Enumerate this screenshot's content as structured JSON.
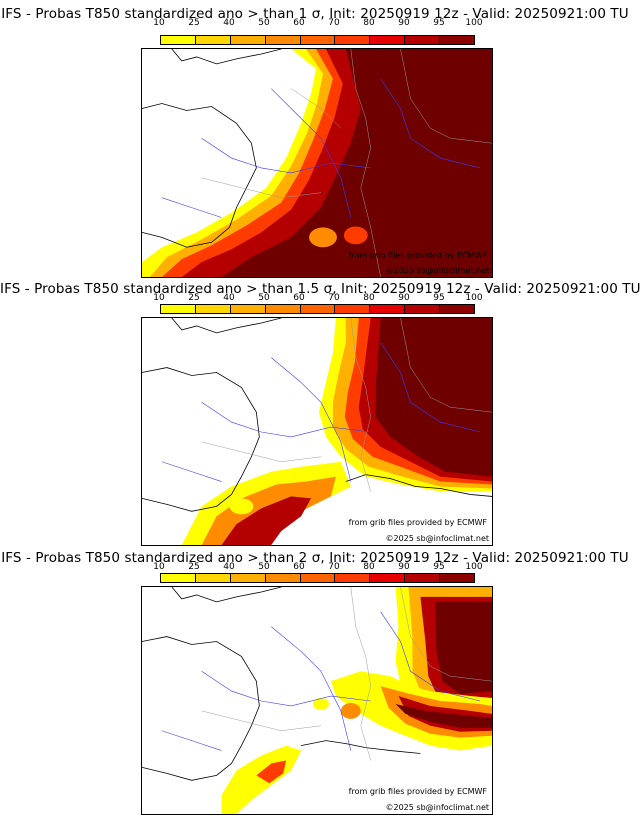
{
  "colorbar": {
    "ticks": [
      "10",
      "25",
      "40",
      "50",
      "60",
      "70",
      "80",
      "90",
      "95",
      "100"
    ],
    "colors": [
      "#ffff00",
      "#ffd700",
      "#ffb000",
      "#ff8c00",
      "#ff6400",
      "#ff3c00",
      "#e60000",
      "#b40000",
      "#8c0000",
      "#640000"
    ]
  },
  "panels": [
    {
      "title": "IFS - Probas T850  standardized ano > than 1 σ, Init: 20250919 12z - Valid: 20250921:00 TU",
      "credit_source": "from grib files provided by ECMWF",
      "credit_copyright": "©2025 sb@infoclimat.net"
    },
    {
      "title": "IFS - Probas T850  standardized ano > than 1.5 σ, Init: 20250919 12z - Valid: 20250921:00 TU",
      "credit_source": "from grib files provided by ECMWF",
      "credit_copyright": "©2025 sb@infoclimat.net"
    },
    {
      "title": "IFS - Probas T850  standardized ano > than 2 σ, Init: 20250919 12z - Valid: 20250921:00 TU",
      "credit_source": "from grib files provided by ECMWF",
      "credit_copyright": "©2025 sb@infoclimat.net"
    }
  ]
}
